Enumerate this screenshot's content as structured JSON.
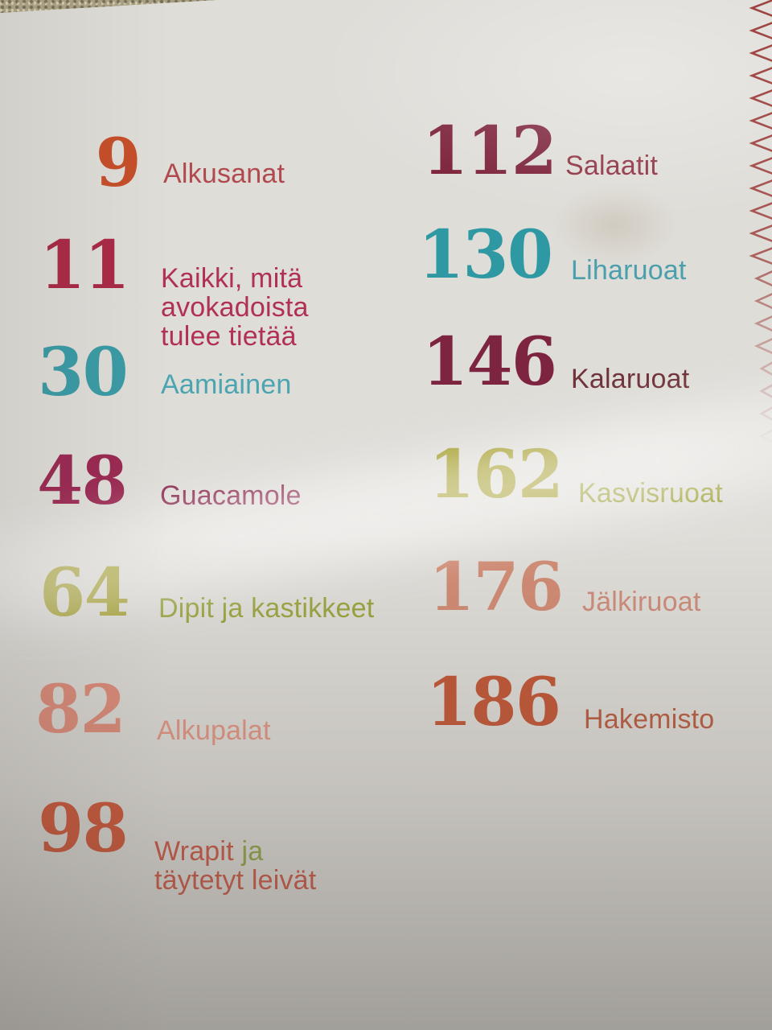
{
  "document": {
    "kind": "cookbook-table-of-contents",
    "language": "Finnish"
  },
  "toc": {
    "left_column": [
      {
        "number": "9",
        "number_color": "#c64e2a",
        "label_parts": [
          {
            "text": "Alkusanat",
            "color": "#b04a4e"
          }
        ]
      },
      {
        "number": "11",
        "number_color": "#a92946",
        "label_parts": [
          {
            "text": "Kaikki, mitä\navokadoista\ntulee tietää",
            "color": "#b13152"
          }
        ]
      },
      {
        "number": "30",
        "number_color": "#3a9ba5",
        "label_parts": [
          {
            "text": "Aamiainen",
            "color": "#4ba4b1"
          }
        ]
      },
      {
        "number": "48",
        "number_color": "#9b2a53",
        "label_parts": [
          {
            "text": "Guacamole",
            "color": "#8e3156"
          }
        ]
      },
      {
        "number": "64",
        "number_color": "#a5a02c",
        "label_parts": [
          {
            "text": "Dipit ja kastikkeet",
            "color": "#99a23b"
          }
        ]
      },
      {
        "number": "82",
        "number_color": "#e18b78",
        "label_parts": [
          {
            "text": "Alkupalat",
            "color": "#e29380"
          }
        ]
      },
      {
        "number": "98",
        "number_color": "#d25130",
        "label_parts": [
          {
            "text": "Wrapit ",
            "color": "#cd5340"
          },
          {
            "text": "ja",
            "color": "#90a43e"
          },
          {
            "text": "\ntäytetyt leivät",
            "color": "#cd5340"
          }
        ]
      }
    ],
    "right_column": [
      {
        "number": "112",
        "number_color": "#7b2138",
        "label_parts": [
          {
            "text": "Salaatit",
            "color": "#8d3040"
          }
        ]
      },
      {
        "number": "130",
        "number_color": "#2f99a3",
        "label_parts": [
          {
            "text": "Liharuoat",
            "color": "#4b9fac"
          }
        ]
      },
      {
        "number": "146",
        "number_color": "#7d2441",
        "label_parts": [
          {
            "text": "Kalaruoat",
            "color": "#6f3339"
          }
        ]
      },
      {
        "number": "162",
        "number_color": "#a59e2e",
        "label_parts": [
          {
            "text": "Kasvisruoat",
            "color": "#9fa23c"
          }
        ]
      },
      {
        "number": "176",
        "number_color": "#d08a73",
        "label_parts": [
          {
            "text": "Jälkiruoat",
            "color": "#cd8b79"
          }
        ]
      },
      {
        "number": "186",
        "number_color": "#c25331",
        "label_parts": [
          {
            "text": "Hakemisto",
            "color": "#b95a3c"
          }
        ]
      }
    ]
  },
  "decor": {
    "stitch_color": "#9a3a38",
    "page_color": "#dfddd8",
    "fabric_color": "#a89f82"
  }
}
